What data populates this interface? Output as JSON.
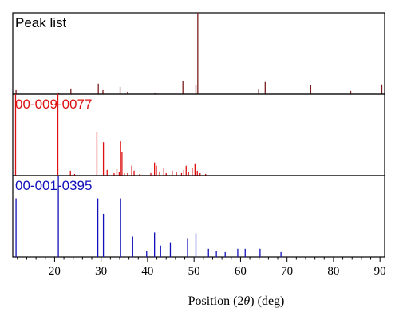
{
  "chart_data": {
    "type": "bar",
    "layout": "three stacked panels sharing the x axis",
    "xlabel": {
      "prefix": "Position (2",
      "symbol": "θ",
      "suffix": ") (deg)"
    },
    "xlim": [
      11,
      91
    ],
    "x_ticks": [
      20,
      30,
      40,
      50,
      60,
      70,
      80,
      90
    ],
    "grid": false,
    "panels": [
      {
        "name": "Peak list",
        "label_color": "#000000",
        "color": "#7b1f1f",
        "ymax": 100,
        "peaks": [
          {
            "x": 11.7,
            "y": 5
          },
          {
            "x": 20.9,
            "y": 2
          },
          {
            "x": 23.5,
            "y": 7
          },
          {
            "x": 29.4,
            "y": 13
          },
          {
            "x": 30.4,
            "y": 5
          },
          {
            "x": 34.1,
            "y": 9
          },
          {
            "x": 35.7,
            "y": 3
          },
          {
            "x": 41.6,
            "y": 2
          },
          {
            "x": 47.6,
            "y": 16
          },
          {
            "x": 50.4,
            "y": 11
          },
          {
            "x": 50.8,
            "y": 100
          },
          {
            "x": 63.9,
            "y": 6
          },
          {
            "x": 65.3,
            "y": 15
          },
          {
            "x": 75.1,
            "y": 11
          },
          {
            "x": 83.7,
            "y": 4
          },
          {
            "x": 90.4,
            "y": 12
          }
        ]
      },
      {
        "name": "00-009-0077",
        "label_color": "#dd1111",
        "color": "#dd1111",
        "ymax": 100,
        "peaks": [
          {
            "x": 11.6,
            "y": 100
          },
          {
            "x": 20.7,
            "y": 100
          },
          {
            "x": 23.4,
            "y": 6
          },
          {
            "x": 24.3,
            "y": 2
          },
          {
            "x": 29.1,
            "y": 53
          },
          {
            "x": 30.5,
            "y": 41
          },
          {
            "x": 31.3,
            "y": 7
          },
          {
            "x": 32.8,
            "y": 3
          },
          {
            "x": 33.4,
            "y": 8
          },
          {
            "x": 33.9,
            "y": 4
          },
          {
            "x": 34.2,
            "y": 42
          },
          {
            "x": 34.5,
            "y": 29
          },
          {
            "x": 35.0,
            "y": 3
          },
          {
            "x": 35.7,
            "y": 3
          },
          {
            "x": 36.6,
            "y": 12
          },
          {
            "x": 37.1,
            "y": 6
          },
          {
            "x": 38.3,
            "y": 2
          },
          {
            "x": 40.7,
            "y": 3
          },
          {
            "x": 41.5,
            "y": 16
          },
          {
            "x": 41.9,
            "y": 12
          },
          {
            "x": 42.6,
            "y": 5
          },
          {
            "x": 43.5,
            "y": 9
          },
          {
            "x": 44.0,
            "y": 3
          },
          {
            "x": 45.3,
            "y": 6
          },
          {
            "x": 46.2,
            "y": 4
          },
          {
            "x": 47.3,
            "y": 3
          },
          {
            "x": 47.8,
            "y": 7
          },
          {
            "x": 48.3,
            "y": 12
          },
          {
            "x": 48.8,
            "y": 4
          },
          {
            "x": 49.6,
            "y": 9
          },
          {
            "x": 50.2,
            "y": 15
          },
          {
            "x": 50.7,
            "y": 6
          },
          {
            "x": 51.3,
            "y": 3
          },
          {
            "x": 52.5,
            "y": 2
          }
        ]
      },
      {
        "name": "00-001-0395",
        "label_color": "#1111bb",
        "color": "#1111bb",
        "ymax": 100,
        "peaks": [
          {
            "x": 11.7,
            "y": 72
          },
          {
            "x": 20.8,
            "y": 100
          },
          {
            "x": 29.3,
            "y": 72
          },
          {
            "x": 30.5,
            "y": 53
          },
          {
            "x": 34.2,
            "y": 72
          },
          {
            "x": 36.8,
            "y": 25
          },
          {
            "x": 39.8,
            "y": 7
          },
          {
            "x": 41.5,
            "y": 30
          },
          {
            "x": 42.8,
            "y": 14
          },
          {
            "x": 44.9,
            "y": 18
          },
          {
            "x": 48.6,
            "y": 23
          },
          {
            "x": 50.4,
            "y": 29
          },
          {
            "x": 53.1,
            "y": 10
          },
          {
            "x": 54.8,
            "y": 7
          },
          {
            "x": 56.7,
            "y": 6
          },
          {
            "x": 59.4,
            "y": 10
          },
          {
            "x": 61.0,
            "y": 10
          },
          {
            "x": 64.2,
            "y": 10
          },
          {
            "x": 68.7,
            "y": 6
          }
        ]
      }
    ]
  }
}
